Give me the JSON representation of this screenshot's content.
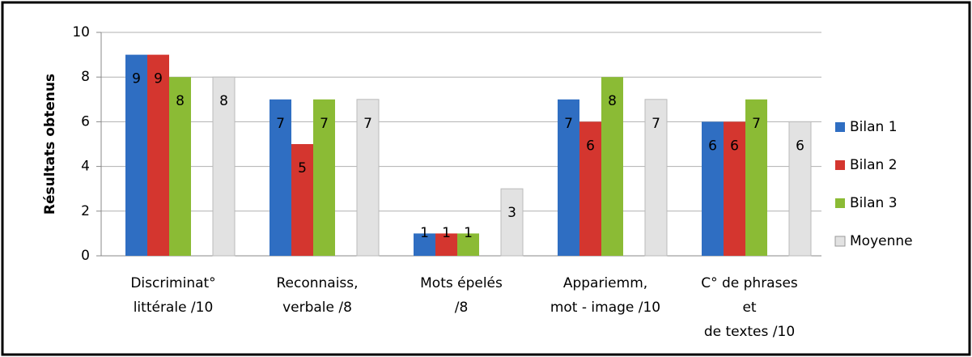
{
  "chart_data": {
    "type": "bar",
    "y_label": "Résultats obtenus",
    "categories": [
      [
        "Discriminat°",
        "littérale /10"
      ],
      [
        "Reconnaiss,",
        "verbale /8"
      ],
      [
        "Mots épelés",
        "/8"
      ],
      [
        "Appariemm,",
        "mot - image /10"
      ],
      [
        "C° de phrases",
        "et",
        "de textes /10"
      ]
    ],
    "series": [
      {
        "name": "Bilan 1",
        "color": "#2f6ec2",
        "values": [
          9,
          7,
          1,
          7,
          6
        ]
      },
      {
        "name": "Bilan 2",
        "color": "#d4362f",
        "values": [
          9,
          5,
          1,
          6,
          6
        ]
      },
      {
        "name": "Bilan 3",
        "color": "#8bbb35",
        "values": [
          8,
          7,
          1,
          8,
          7
        ]
      },
      {
        "name": "Moyenne",
        "color": "#e2e2e2",
        "values": [
          8,
          7,
          3,
          7,
          6
        ]
      }
    ],
    "ylim": [
      0,
      10
    ],
    "yticks": [
      0,
      2,
      4,
      6,
      8,
      10
    ],
    "grid": true,
    "legend": "right"
  }
}
